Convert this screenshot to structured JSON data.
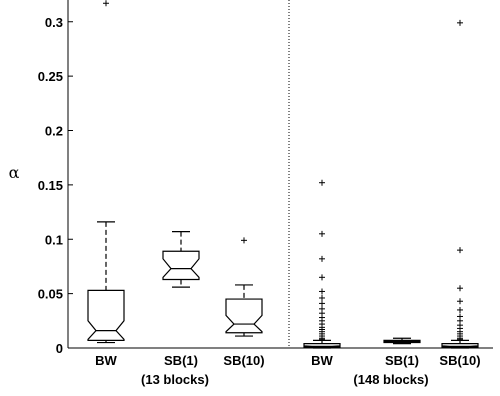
{
  "chart_data": {
    "type": "boxplot",
    "ylabel": "α",
    "ylim": [
      0,
      0.32
    ],
    "yticks": [
      {
        "value": 0,
        "label": "0"
      },
      {
        "value": 0.05,
        "label": "0.05"
      },
      {
        "value": 0.1,
        "label": "0.1"
      },
      {
        "value": 0.15,
        "label": "0.15"
      },
      {
        "value": 0.2,
        "label": "0.2"
      },
      {
        "value": 0.25,
        "label": "0.25"
      },
      {
        "value": 0.3,
        "label": "0.3"
      }
    ],
    "groups": [
      {
        "label": "(13 blocks)",
        "categories": [
          0,
          1,
          2
        ]
      },
      {
        "label": "(148 blocks)",
        "categories": [
          3,
          4,
          5
        ]
      }
    ],
    "boxes": [
      {
        "label": "BW",
        "whisker_low": 0.005,
        "q1": 0.007,
        "median": 0.016,
        "q3": 0.053,
        "whisker_high": 0.116,
        "notch_low": 0.008,
        "notch_high": 0.025,
        "outliers": [
          0.317
        ]
      },
      {
        "label": "SB(1)",
        "whisker_low": 0.056,
        "q1": 0.063,
        "median": 0.073,
        "q3": 0.089,
        "whisker_high": 0.107,
        "notch_low": 0.065,
        "notch_high": 0.082,
        "outliers": []
      },
      {
        "label": "SB(10)",
        "whisker_low": 0.011,
        "q1": 0.014,
        "median": 0.022,
        "q3": 0.045,
        "whisker_high": 0.058,
        "notch_low": 0.015,
        "notch_high": 0.03,
        "outliers": [
          0.099
        ]
      },
      {
        "label": "BW",
        "whisker_low": 0.0,
        "q1": 0.0005,
        "median": 0.0015,
        "q3": 0.004,
        "whisker_high": 0.007,
        "notch_low": 0.001,
        "notch_high": 0.002,
        "outliers": [
          0.152,
          0.105,
          0.082,
          0.065,
          0.052,
          0.046,
          0.041,
          0.036,
          0.032,
          0.028,
          0.025,
          0.022,
          0.019,
          0.017,
          0.015,
          0.013,
          0.011,
          0.009,
          0.008
        ]
      },
      {
        "label": "SB(1)",
        "whisker_low": 0.004,
        "q1": 0.005,
        "median": 0.006,
        "q3": 0.007,
        "whisker_high": 0.009,
        "notch_low": 0.0055,
        "notch_high": 0.0065,
        "outliers": []
      },
      {
        "label": "SB(10)",
        "whisker_low": 0.0,
        "q1": 0.0005,
        "median": 0.0015,
        "q3": 0.004,
        "whisker_high": 0.007,
        "notch_low": 0.001,
        "notch_high": 0.002,
        "outliers": [
          0.299,
          0.09,
          0.055,
          0.043,
          0.035,
          0.029,
          0.025,
          0.021,
          0.018,
          0.015,
          0.013,
          0.011,
          0.009,
          0.008
        ]
      }
    ],
    "separator_between_groups": true,
    "grid": false
  }
}
